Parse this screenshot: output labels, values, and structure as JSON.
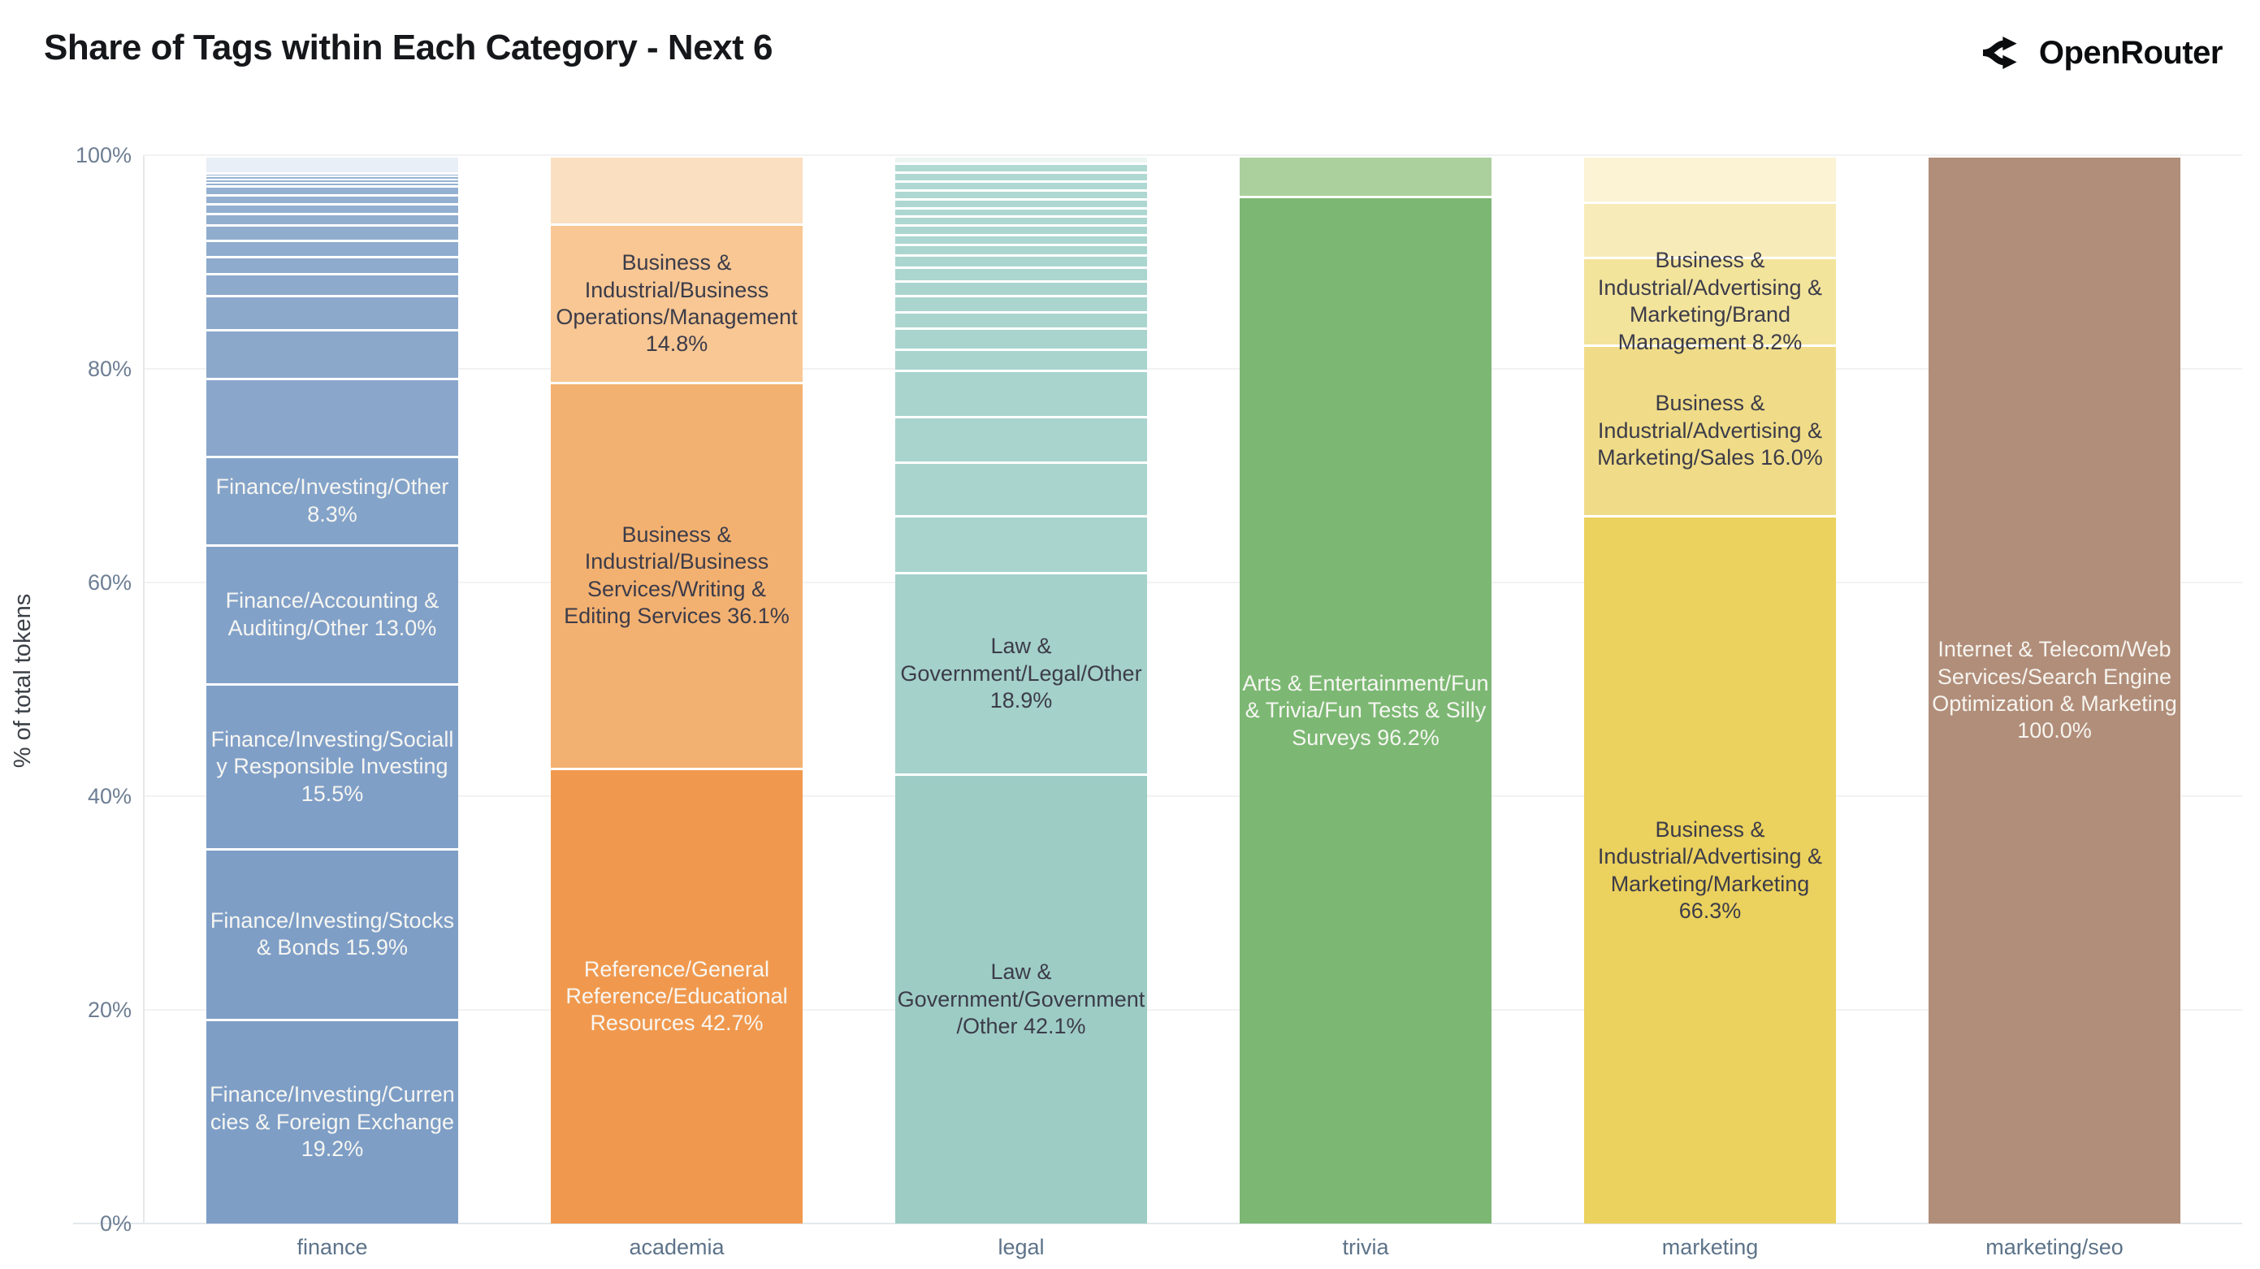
{
  "page": {
    "title": "Share of Tags within Each Category - Next 6"
  },
  "brand": {
    "name": "OpenRouter",
    "icon": "openrouter-fork-arrows-icon"
  },
  "chart_data": {
    "type": "bar",
    "variant": "stacked-100-percent",
    "title": "Share of Tags within Each Category - Next 6",
    "xlabel": "",
    "ylabel": "% of total tokens",
    "ylim": [
      0,
      100
    ],
    "yticks": [
      0,
      20,
      40,
      60,
      80,
      100
    ],
    "ytick_suffix": "%",
    "grid": true,
    "legend": false,
    "order": "bottom-to-top",
    "categories": [
      "finance",
      "academia",
      "legal",
      "trivia",
      "marketing",
      "marketing/seo"
    ],
    "bars": [
      {
        "category": "finance",
        "label_max_width": 308,
        "segments": [
          {
            "tag": "Finance/Investing/Currencies & Foreign Exchange",
            "pct": 19.2,
            "color": "#7e9ec6",
            "label_color": "#f6f6f2",
            "show_label": true
          },
          {
            "tag": "Finance/Investing/Stocks & Bonds",
            "pct": 15.9,
            "color": "#7e9ec6",
            "label_color": "#f6f6f2",
            "show_label": true
          },
          {
            "tag": "Finance/Investing/Socially Responsible Investing",
            "pct": 15.5,
            "color": "#809fc7",
            "label_color": "#f6f6f2",
            "show_label": true
          },
          {
            "tag": "Finance/Accounting & Auditing/Other",
            "pct": 13.0,
            "color": "#82a1c8",
            "label_color": "#f6f6f2",
            "show_label": true
          },
          {
            "tag": "Finance/Investing/Other",
            "pct": 8.3,
            "color": "#84a3c9",
            "label_color": "#f6f6f2",
            "show_label": true
          },
          {
            "tag": null,
            "pct": 7.3,
            "color": "#8aa7cb",
            "show_label": false
          },
          {
            "tag": null,
            "pct": 4.5,
            "color": "#8ba8cb",
            "show_label": false
          },
          {
            "tag": null,
            "pct": 3.2,
            "color": "#8ca9cc",
            "show_label": false
          },
          {
            "tag": null,
            "pct": 2.1,
            "color": "#8daacd",
            "show_label": false
          },
          {
            "tag": null,
            "pct": 1.6,
            "color": "#8eabcd",
            "show_label": false
          },
          {
            "tag": null,
            "pct": 1.5,
            "color": "#8facce",
            "show_label": false
          },
          {
            "tag": null,
            "pct": 1.4,
            "color": "#90adce",
            "show_label": false
          },
          {
            "tag": null,
            "pct": 1.1,
            "color": "#91aecf",
            "show_label": false
          },
          {
            "tag": null,
            "pct": 0.9,
            "color": "#92afd0",
            "show_label": false
          },
          {
            "tag": null,
            "pct": 0.85,
            "color": "#93b0d0",
            "show_label": false
          },
          {
            "tag": null,
            "pct": 0.85,
            "color": "#94b1d1",
            "show_label": false
          },
          {
            "tag": null,
            "pct": 0.3,
            "color": "#95b2d1",
            "show_label": false
          },
          {
            "tag": null,
            "pct": 0.3,
            "color": "#96b3d2",
            "show_label": false
          },
          {
            "tag": null,
            "pct": 0.3,
            "color": "#97b3d2",
            "show_label": false
          },
          {
            "tag": null,
            "pct": 0.3,
            "color": "#98b4d3",
            "show_label": false
          },
          {
            "tag": null,
            "pct": 1.6,
            "color": "#e9eff6",
            "show_label": false
          }
        ]
      },
      {
        "category": "academia",
        "label_max_width": 322,
        "segments": [
          {
            "tag": "Reference/General Reference/Educational Resources",
            "pct": 42.7,
            "color": "#f0994e",
            "label_color": "#f8f6f2",
            "show_label": true
          },
          {
            "tag": "Business & Industrial/Business Services/Writing & Editing Services",
            "pct": 36.1,
            "color": "#f3b171",
            "label_color": "#3c3c49",
            "show_label": true
          },
          {
            "tag": "Business & Industrial/Business Operations/Management",
            "pct": 14.8,
            "color": "#f8c794",
            "label_color": "#3c3c49",
            "show_label": true
          },
          {
            "tag": null,
            "pct": 6.4,
            "color": "#fbdfc1",
            "show_label": false
          }
        ]
      },
      {
        "category": "legal",
        "label_max_width": 392,
        "segments": [
          {
            "tag": "Law & Government/Government/Other",
            "pct": 42.1,
            "color": "#9dccc5",
            "label_color": "#3c3c49",
            "show_label": true
          },
          {
            "tag": "Law & Government/Legal/Other",
            "pct": 18.9,
            "color": "#a4d1ca",
            "label_color": "#3c3c49",
            "show_label": true
          },
          {
            "tag": null,
            "pct": 5.3,
            "color": "#a8d4cd",
            "show_label": false
          },
          {
            "tag": null,
            "pct": 5.0,
            "color": "#a8d4cd",
            "show_label": false
          },
          {
            "tag": null,
            "pct": 4.3,
            "color": "#a8d4cd",
            "show_label": false
          },
          {
            "tag": null,
            "pct": 4.3,
            "color": "#a9d4ce",
            "show_label": false
          },
          {
            "tag": null,
            "pct": 2.0,
            "color": "#a9d4ce",
            "show_label": false
          },
          {
            "tag": null,
            "pct": 2.0,
            "color": "#a9d4ce",
            "show_label": false
          },
          {
            "tag": null,
            "pct": 1.5,
            "color": "#aad5ce",
            "show_label": false
          },
          {
            "tag": null,
            "pct": 1.5,
            "color": "#aad5ce",
            "show_label": false
          },
          {
            "tag": null,
            "pct": 1.4,
            "color": "#aad5ce",
            "show_label": false
          },
          {
            "tag": null,
            "pct": 1.3,
            "color": "#abd5cf",
            "show_label": false
          },
          {
            "tag": null,
            "pct": 1.1,
            "color": "#abd5cf",
            "show_label": false
          },
          {
            "tag": null,
            "pct": 1.0,
            "color": "#abd6cf",
            "show_label": false
          },
          {
            "tag": null,
            "pct": 0.9,
            "color": "#acd6d0",
            "show_label": false
          },
          {
            "tag": null,
            "pct": 0.9,
            "color": "#acd6d0",
            "show_label": false
          },
          {
            "tag": null,
            "pct": 0.85,
            "color": "#add7d0",
            "show_label": false
          },
          {
            "tag": null,
            "pct": 0.8,
            "color": "#add7d1",
            "show_label": false
          },
          {
            "tag": null,
            "pct": 0.8,
            "color": "#aed7d1",
            "show_label": false
          },
          {
            "tag": null,
            "pct": 0.85,
            "color": "#aed8d1",
            "show_label": false
          },
          {
            "tag": null,
            "pct": 0.85,
            "color": "#afd8d2",
            "show_label": false
          },
          {
            "tag": null,
            "pct": 0.85,
            "color": "#afd8d2",
            "show_label": false
          },
          {
            "tag": null,
            "pct": 0.85,
            "color": "#b0d9d2",
            "show_label": false
          },
          {
            "tag": null,
            "pct": 0.65,
            "color": "#ebf5f2",
            "show_label": false
          }
        ]
      },
      {
        "category": "trivia",
        "label_max_width": 330,
        "segments": [
          {
            "tag": "Arts & Entertainment/Fun & Trivia/Fun Tests & Silly Surveys",
            "pct": 96.2,
            "color": "#7cb873",
            "label_color": "#f6f6f2",
            "show_label": true
          },
          {
            "tag": null,
            "pct": 3.8,
            "color": "#abd09d",
            "show_label": false
          }
        ]
      },
      {
        "category": "marketing",
        "label_max_width": 304,
        "segments": [
          {
            "tag": "Business & Industrial/Advertising & Marketing/Marketing",
            "pct": 66.3,
            "color": "#ebd15d",
            "label_color": "#3c3c49",
            "show_label": true
          },
          {
            "tag": "Business & Industrial/Advertising & Marketing/Sales",
            "pct": 16.0,
            "color": "#f0dc88",
            "label_color": "#3c3c49",
            "show_label": true
          },
          {
            "tag": "Business & Industrial/Advertising & Marketing/Brand Management",
            "pct": 8.2,
            "color": "#f3e49c",
            "label_color": "#3c3c49",
            "show_label": true
          },
          {
            "tag": null,
            "pct": 5.2,
            "color": "#f7ecb9",
            "show_label": false
          },
          {
            "tag": null,
            "pct": 4.3,
            "color": "#fbf3d4",
            "show_label": false
          }
        ]
      },
      {
        "category": "marketing/seo",
        "label_max_width": 334,
        "segments": [
          {
            "tag": "Internet & Telecom/Web Services/Search Engine Optimization & Marketing",
            "pct": 100.0,
            "color": "#b18e7a",
            "label_color": "#f6f4ef",
            "show_label": true
          }
        ]
      }
    ]
  }
}
